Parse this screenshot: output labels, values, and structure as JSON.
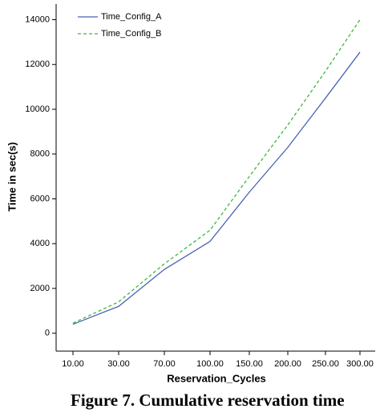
{
  "chart_data": {
    "type": "line",
    "categories": [
      "10.00",
      "30.00",
      "70.00",
      "100.00",
      "150.00",
      "200.00",
      "250.00",
      "300.00"
    ],
    "series": [
      {
        "name": "Time_Config_A",
        "color": "#4a62b0",
        "dash": "none",
        "values": [
          400,
          1200,
          2850,
          4100,
          6300,
          8300,
          10500,
          12550
        ]
      },
      {
        "name": "Time_Config_B",
        "color": "#3cb83c",
        "dash": "4 3",
        "values": [
          450,
          1400,
          3100,
          4600,
          7000,
          9300,
          11700,
          14000
        ]
      }
    ],
    "xlabel": "Reservation_Cycles",
    "ylabel": "Time in sec(s)",
    "ylim": [
      -800,
      14700
    ],
    "yticks": [
      0,
      2000,
      4000,
      6000,
      8000,
      10000,
      12000,
      14000
    ],
    "legend": "upper left",
    "caption": "Figure 7. Cumulative reservation time"
  }
}
